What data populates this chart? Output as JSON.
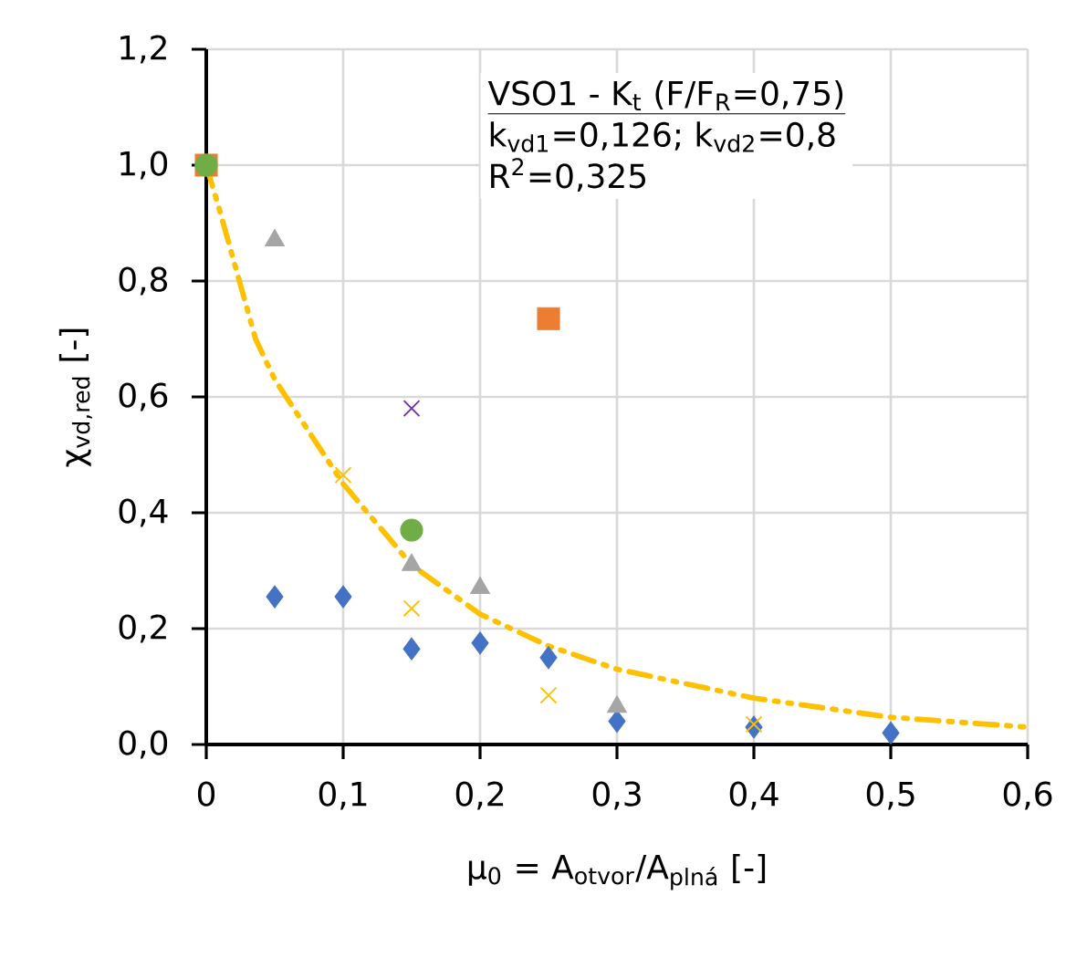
{
  "chart_data": {
    "type": "scatter",
    "xlabel": "μ$_{0}$ = A$_{otvor}$/A$_{plná}$ [-]",
    "ylabel": "χ$_{vd,red}$ [-]",
    "annotations": [
      "VSO1 - K$_{t}$ (F/F$_{R}$=0,75)",
      "k$_{vd1}$=0,126; k$_{vd2}$=0,8",
      "R$^{2}$=0,325"
    ],
    "xlim": [
      0,
      0.6
    ],
    "ylim": [
      0,
      1.2
    ],
    "xticks": [
      0,
      {
        "value": 0.1,
        "label": "0,1"
      },
      {
        "value": 0.2,
        "label": "0,2"
      },
      {
        "value": 0.3,
        "label": "0,3"
      },
      {
        "value": 0.4,
        "label": "0,4"
      },
      {
        "value": 0.5,
        "label": "0,5"
      },
      {
        "value": 0.6,
        "label": "0,6"
      }
    ],
    "yticks": [
      {
        "value": 0,
        "label": "0,0"
      },
      {
        "value": 0.2,
        "label": "0,2"
      },
      {
        "value": 0.4,
        "label": "0,4"
      },
      {
        "value": 0.6,
        "label": "0,6"
      },
      {
        "value": 0.8,
        "label": "0,8"
      },
      {
        "value": 1.0,
        "label": "1,0"
      },
      {
        "value": 1.2,
        "label": "1,2"
      }
    ],
    "grid": true,
    "series": [
      {
        "type": "line",
        "color": "#ffc000",
        "marker": "none",
        "line_style": "dashed",
        "x": [
          0,
          0.01,
          0.036,
          0.05,
          0.1,
          0.15,
          0.2,
          0.25,
          0.3,
          0.4,
          0.5,
          0.6
        ],
        "values": [
          1.0,
          0.92,
          0.7,
          0.63,
          0.45,
          0.31,
          0.225,
          0.17,
          0.13,
          0.08,
          0.047,
          0.03
        ]
      },
      {
        "color": "#4472c4",
        "marker": "diamond",
        "x": [
          0.05,
          0.1,
          0.15,
          0.2,
          0.25,
          0.3,
          0.4,
          0.5
        ],
        "values": [
          0.255,
          0.255,
          0.165,
          0.175,
          0.15,
          0.04,
          0.03,
          0.02
        ]
      },
      {
        "color": "#a5a5a5",
        "marker": "triangle",
        "x": [
          0.05,
          0.15,
          0.2,
          0.3
        ],
        "values": [
          0.87,
          0.31,
          0.27,
          0.065
        ]
      },
      {
        "color": "#ffc000",
        "marker": "cross",
        "x": [
          0.1,
          0.15,
          0.25,
          0.4
        ],
        "values": [
          0.465,
          0.235,
          0.085,
          0.035
        ]
      },
      {
        "color": "#7030a0",
        "marker": "cross",
        "x": [
          0.15
        ],
        "values": [
          0.58
        ]
      },
      {
        "color": "#ed7d31",
        "marker": "square",
        "x": [
          0,
          0.25
        ],
        "values": [
          1.0,
          0.735
        ]
      },
      {
        "color": "#70ad47",
        "marker": "circle",
        "x": [
          0,
          0.15
        ],
        "values": [
          1.0,
          0.37
        ]
      }
    ]
  }
}
